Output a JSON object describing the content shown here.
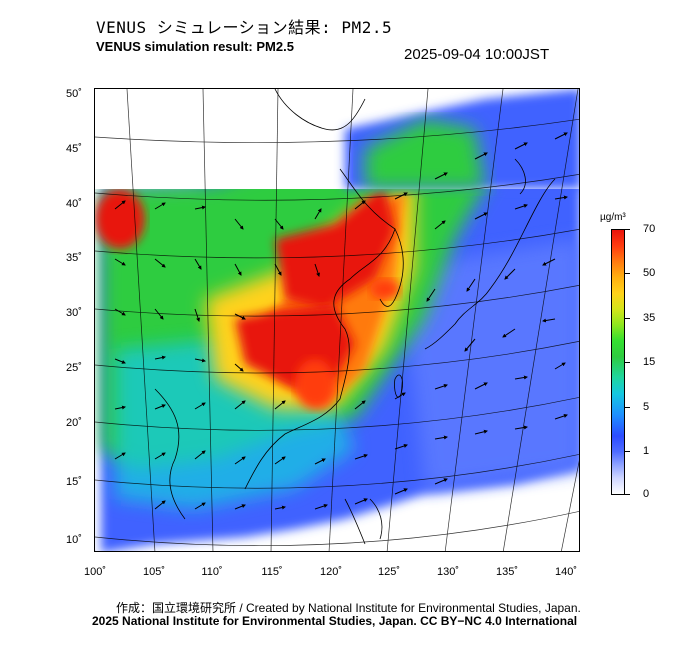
{
  "title_jp": "VENUS シミュレーション結果: PM2.5",
  "title_en": "VENUS simulation result: PM2.5",
  "timestamp": "2025-09-04 10:00JST",
  "map": {
    "lat_labels": [
      "50˚",
      "45˚",
      "40˚",
      "35˚",
      "30˚",
      "25˚",
      "20˚",
      "15˚",
      "10˚"
    ],
    "lon_labels": [
      "100˚",
      "105˚",
      "110˚",
      "115˚",
      "120˚",
      "125˚",
      "130˚",
      "135˚",
      "140˚"
    ]
  },
  "colorbar": {
    "unit": "µg/m³",
    "ticks": [
      "70",
      "50",
      "35",
      "15",
      "5",
      "1",
      "0"
    ],
    "colors": {
      "high": "#e8140c",
      "orange": "#ff7a10",
      "yellow": "#ffd21a",
      "green": "#2ecc40",
      "cyan": "#15c8e0",
      "blue": "#1e90ff",
      "low_blue": "#8fa3ff",
      "zero": "#ffffff"
    }
  },
  "credits": {
    "line1": "作成：国立環境研究所 / Created by National Institute for Environmental Studies, Japan.",
    "line2": "2025 National Institute for Environmental Studies, Japan. CC BY−NC 4.0 International"
  }
}
